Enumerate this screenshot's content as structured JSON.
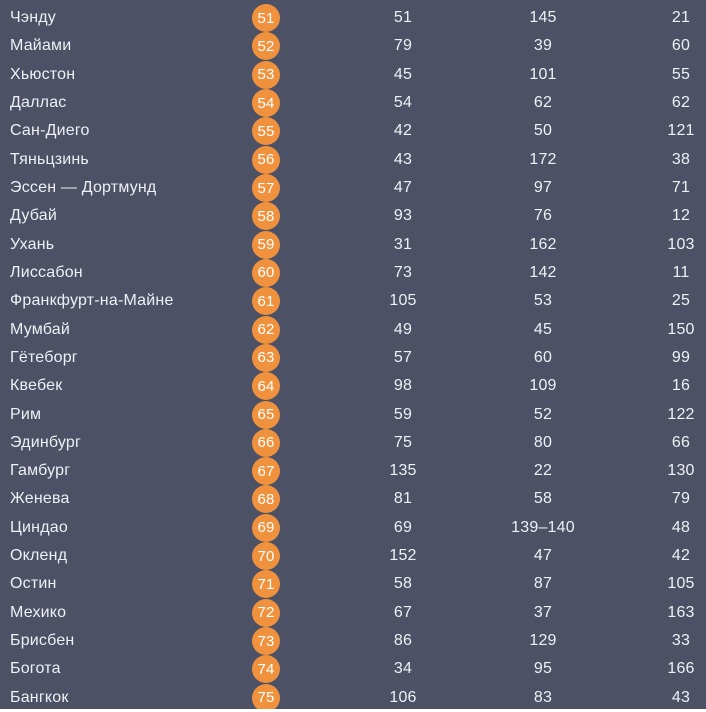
{
  "colors": {
    "background": "#4d5166",
    "badge_fill": "#f0923d",
    "badge_text": "#ffffff",
    "row_text": "#eef0f4",
    "bottom_strip": "#ffffff"
  },
  "chart_data": {
    "type": "table",
    "columns": [
      "city",
      "rank",
      "value_1",
      "value_2",
      "value_3"
    ],
    "rows": [
      {
        "city": "Чэнду",
        "rank": "51",
        "v1": "51",
        "v2": "145",
        "v3": "21"
      },
      {
        "city": "Майами",
        "rank": "52",
        "v1": "79",
        "v2": "39",
        "v3": "60"
      },
      {
        "city": "Хьюстон",
        "rank": "53",
        "v1": "45",
        "v2": "101",
        "v3": "55"
      },
      {
        "city": "Даллас",
        "rank": "54",
        "v1": "54",
        "v2": "62",
        "v3": "62"
      },
      {
        "city": "Сан-Диего",
        "rank": "55",
        "v1": "42",
        "v2": "50",
        "v3": "121"
      },
      {
        "city": "Тяньцзинь",
        "rank": "56",
        "v1": "43",
        "v2": "172",
        "v3": "38"
      },
      {
        "city": "Эссен — Дортмунд",
        "rank": "57",
        "v1": "47",
        "v2": "97",
        "v3": "71"
      },
      {
        "city": "Дубай",
        "rank": "58",
        "v1": "93",
        "v2": "76",
        "v3": "12"
      },
      {
        "city": "Ухань",
        "rank": "59",
        "v1": "31",
        "v2": "162",
        "v3": "103"
      },
      {
        "city": "Лиссабон",
        "rank": "60",
        "v1": "73",
        "v2": "142",
        "v3": "11"
      },
      {
        "city": "Франкфурт-на-Майне",
        "rank": "61",
        "v1": "105",
        "v2": "53",
        "v3": "25"
      },
      {
        "city": "Мумбай",
        "rank": "62",
        "v1": "49",
        "v2": "45",
        "v3": "150"
      },
      {
        "city": "Гётеборг",
        "rank": "63",
        "v1": "57",
        "v2": "60",
        "v3": "99"
      },
      {
        "city": "Квебек",
        "rank": "64",
        "v1": "98",
        "v2": "109",
        "v3": "16"
      },
      {
        "city": "Рим",
        "rank": "65",
        "v1": "59",
        "v2": "52",
        "v3": "122"
      },
      {
        "city": "Эдинбург",
        "rank": "66",
        "v1": "75",
        "v2": "80",
        "v3": "66"
      },
      {
        "city": "Гамбург",
        "rank": "67",
        "v1": "135",
        "v2": "22",
        "v3": "130"
      },
      {
        "city": "Женева",
        "rank": "68",
        "v1": "81",
        "v2": "58",
        "v3": "79"
      },
      {
        "city": "Циндао",
        "rank": "69",
        "v1": "69",
        "v2": "139–140",
        "v3": "48"
      },
      {
        "city": "Окленд",
        "rank": "70",
        "v1": "152",
        "v2": "47",
        "v3": "42"
      },
      {
        "city": "Остин",
        "rank": "71",
        "v1": "58",
        "v2": "87",
        "v3": "105"
      },
      {
        "city": "Мехико",
        "rank": "72",
        "v1": "67",
        "v2": "37",
        "v3": "163"
      },
      {
        "city": "Брисбен",
        "rank": "73",
        "v1": "86",
        "v2": "129",
        "v3": "33"
      },
      {
        "city": "Богота",
        "rank": "74",
        "v1": "34",
        "v2": "95",
        "v3": "166"
      },
      {
        "city": "Бангкок",
        "rank": "75",
        "v1": "106",
        "v2": "83",
        "v3": "43"
      }
    ]
  }
}
